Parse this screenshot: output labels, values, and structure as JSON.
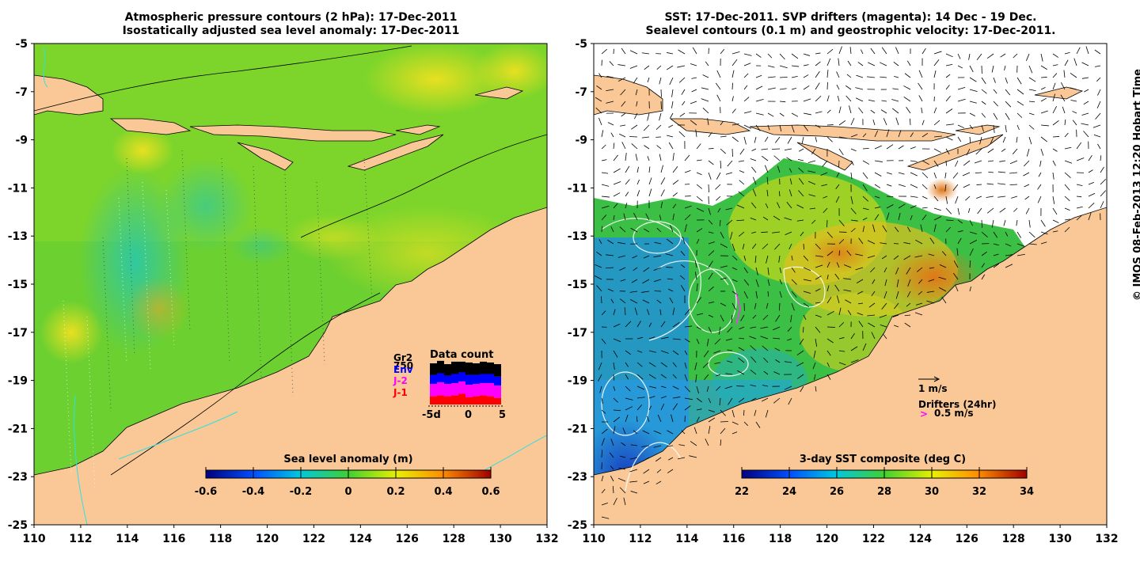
{
  "left_panel": {
    "title_line1": "Atmospheric pressure contours (2 hPa): 17-Dec-2011",
    "title_line2": "Isostatically adjusted sea level anomaly: 17-Dec-2011",
    "colorbar": {
      "title": "Sea level anomaly (m)",
      "ticks": [
        "-0.6",
        "-0.4",
        "-0.2",
        "0",
        "0.2",
        "0.4",
        "0.6"
      ],
      "min": -0.6,
      "max": 0.6
    },
    "data_count": {
      "title": "Data count",
      "legend": [
        {
          "label": "Gr2",
          "color": "#000000"
        },
        {
          "label": "750",
          "color": "#000000"
        },
        {
          "label": "Env",
          "color": "#0000ff"
        },
        {
          "label": "J-2",
          "color": "#ff00ff"
        },
        {
          "label": "J-1",
          "color": "#ff0000"
        }
      ],
      "x_ticks": [
        "-5d",
        "0",
        "5"
      ],
      "bars": [
        [
          0.28,
          0.22,
          0.3,
          0.2
        ],
        [
          0.3,
          0.22,
          0.32,
          0.22
        ],
        [
          0.28,
          0.2,
          0.3,
          0.2
        ],
        [
          0.3,
          0.22,
          0.3,
          0.22
        ],
        [
          0.26,
          0.22,
          0.3,
          0.26
        ],
        [
          0.3,
          0.24,
          0.3,
          0.18
        ],
        [
          0.28,
          0.22,
          0.3,
          0.2
        ],
        [
          0.3,
          0.22,
          0.3,
          0.22
        ],
        [
          0.28,
          0.22,
          0.32,
          0.2
        ],
        [
          0.3,
          0.22,
          0.3,
          0.16
        ]
      ]
    }
  },
  "right_panel": {
    "title_line1": "SST: 17-Dec-2011. SVP drifters (magenta): 14 Dec - 19 Dec.",
    "title_line2": "Sealevel contours (0.1 m) and geostrophic velocity: 17-Dec-2011.",
    "colorbar": {
      "title": "3-day SST composite (deg C)",
      "ticks": [
        "22",
        "24",
        "26",
        "28",
        "30",
        "32",
        "34"
      ],
      "min": 22,
      "max": 34
    },
    "velocity_legend": "1 m/s",
    "drifters_legend": "Drifters (24hr)",
    "drifters_speed": "0.5 m/s",
    "drifters_marker": ">"
  },
  "axes": {
    "lat_labels": [
      "-5",
      "-7",
      "-9",
      "-11",
      "-13",
      "-15",
      "-17",
      "-19",
      "-21",
      "-23",
      "-25"
    ],
    "lon_labels": [
      "110",
      "112",
      "114",
      "116",
      "118",
      "120",
      "122",
      "124",
      "126",
      "128",
      "130",
      "132"
    ],
    "lat_range": [
      -25,
      -5
    ],
    "lon_range": [
      110,
      132
    ]
  },
  "credit": "© IMOS 08-Feb-2013 12:20 Hobart Time",
  "colors": {
    "land": "#f9c896",
    "sla_base": "#5dd12a",
    "sst_cold": "#1a64e0"
  }
}
